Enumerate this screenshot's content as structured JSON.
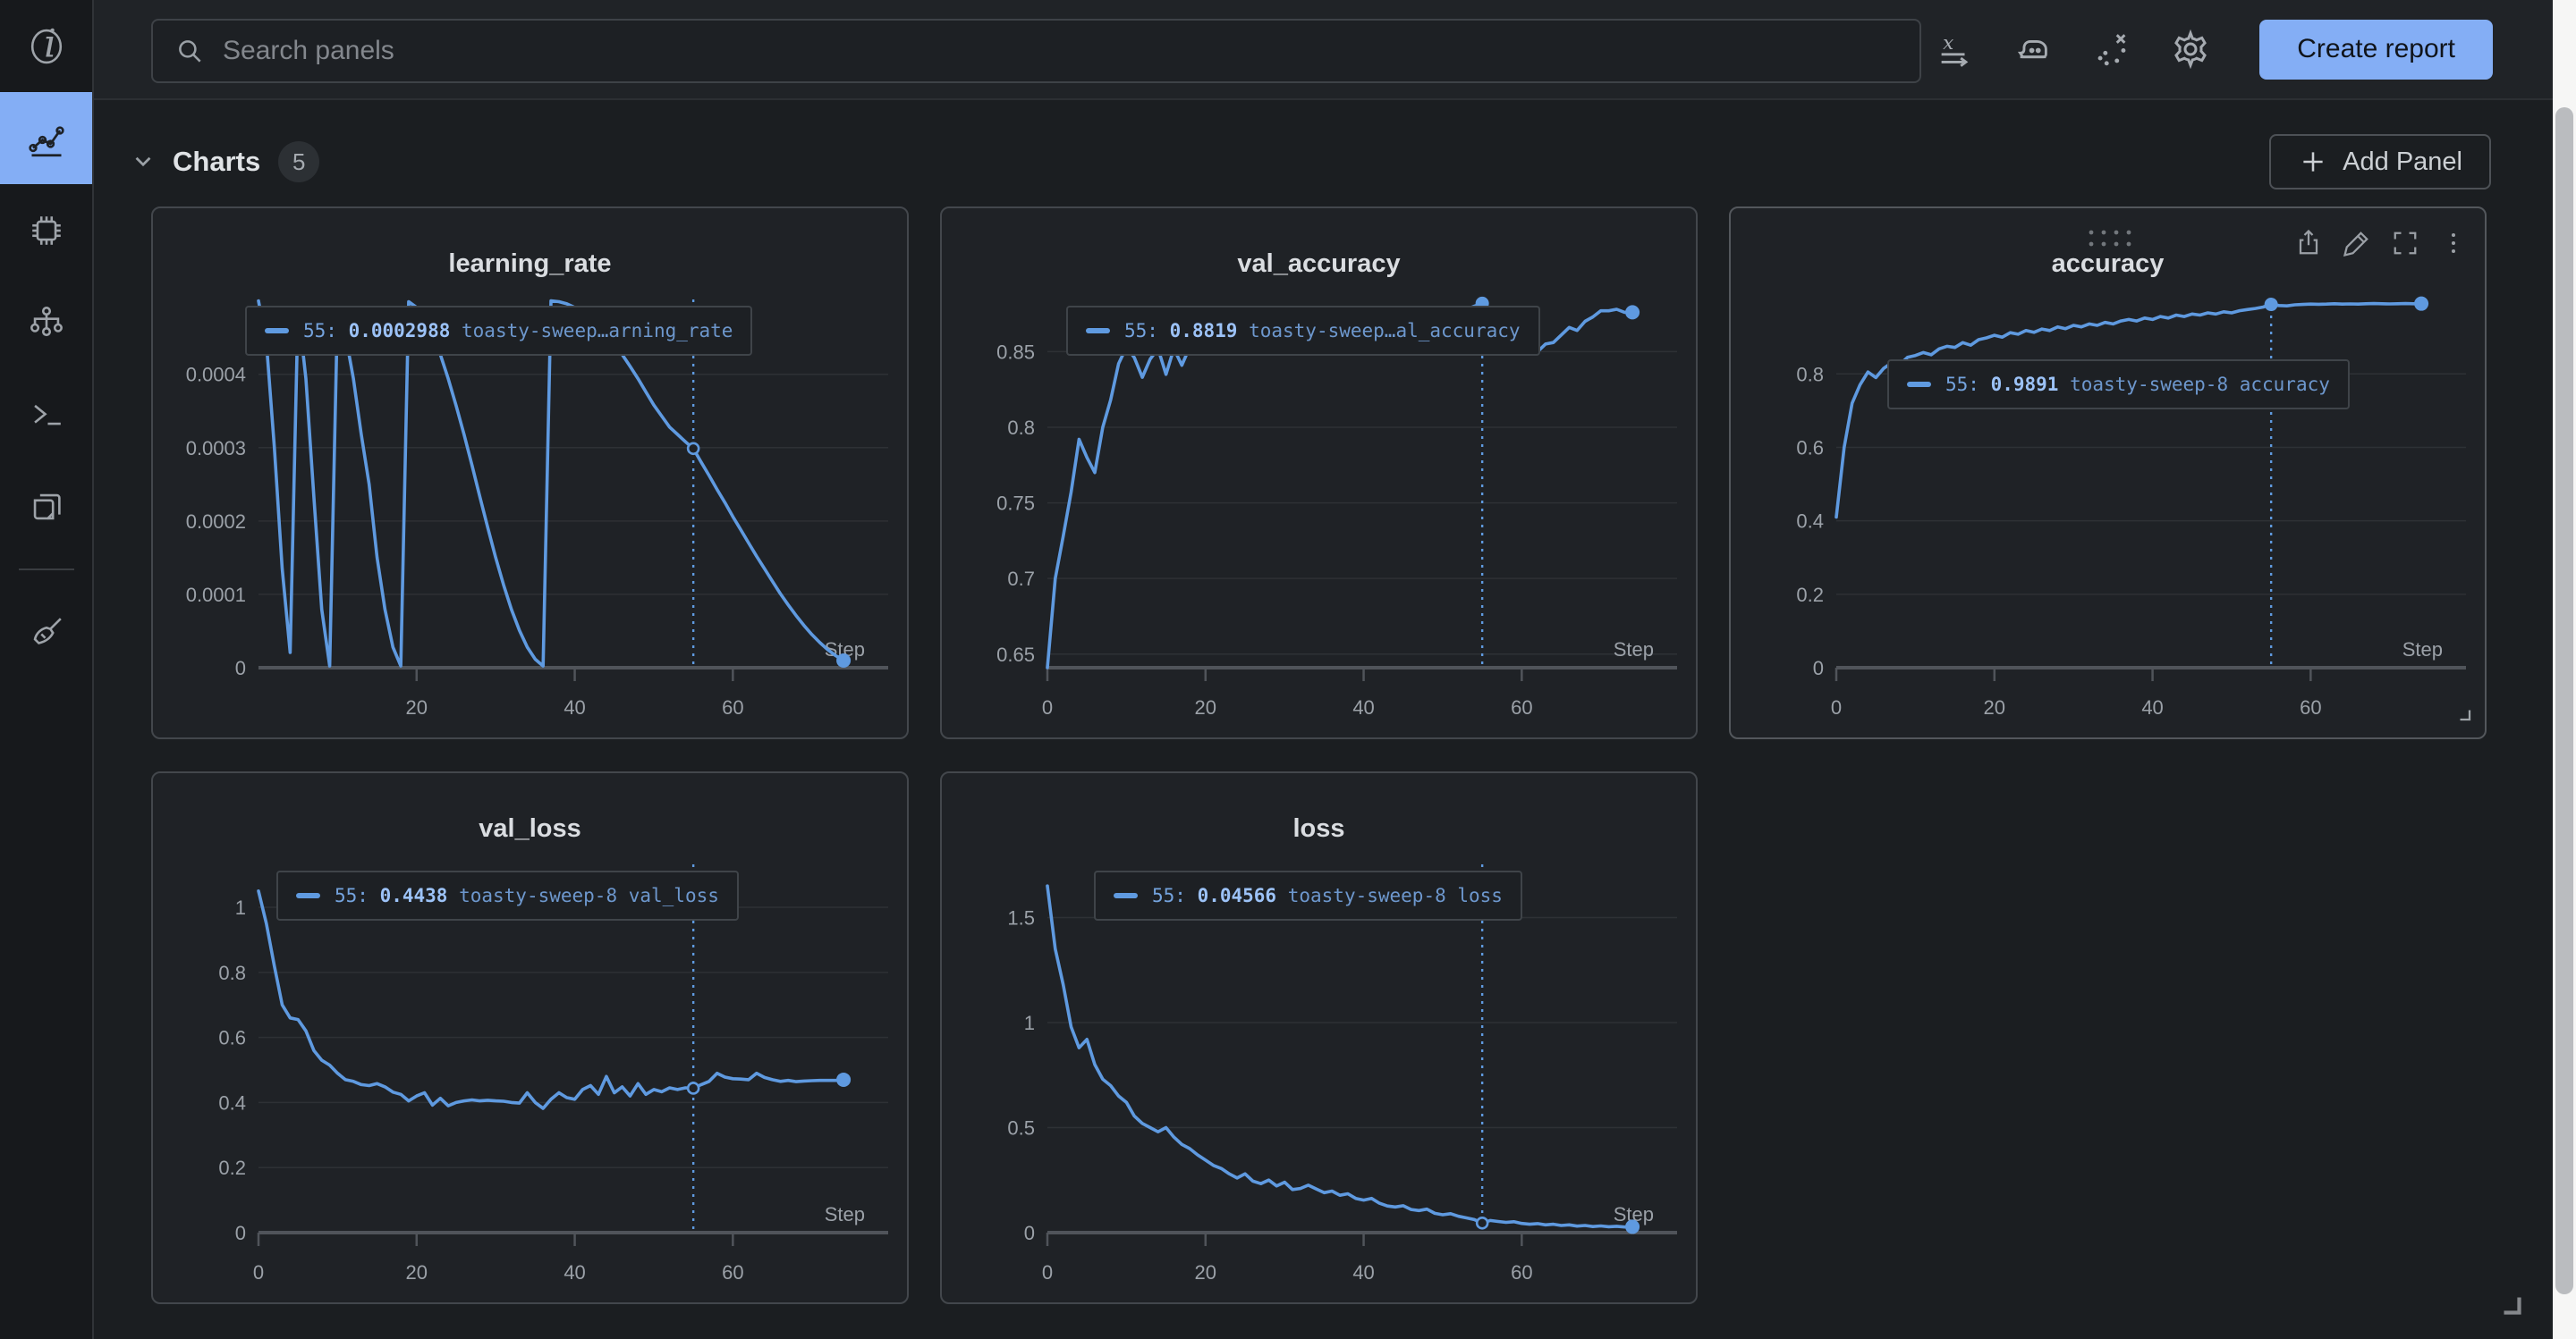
{
  "topbar": {
    "search_placeholder": "Search panels",
    "create_report_label": "Create report",
    "icons": [
      "x-axis-expression",
      "smoothing-iron",
      "outlier-scatter",
      "settings-gear"
    ]
  },
  "sidebar": {
    "items": [
      {
        "id": "overview",
        "icon": "info-icon",
        "active": false
      },
      {
        "id": "charts",
        "icon": "line-chart-icon",
        "active": true
      },
      {
        "id": "system",
        "icon": "chip-icon",
        "active": false
      },
      {
        "id": "model",
        "icon": "model-graph-icon",
        "active": false
      },
      {
        "id": "logs",
        "icon": "terminal-icon",
        "active": false
      },
      {
        "id": "files",
        "icon": "files-icon",
        "active": false
      },
      {
        "id": "sweep",
        "icon": "broom-icon",
        "active": false
      }
    ]
  },
  "section": {
    "title": "Charts",
    "count": "5",
    "add_panel_label": "Add Panel"
  },
  "run_name": "toasty-sweep-8",
  "colors": {
    "accent_blue": "#84aef5",
    "series_blue": "#5f9ae0",
    "panel_bg": "#1f2226",
    "page_bg": "#1b1e21"
  },
  "chart_data": [
    {
      "key": "learning_rate",
      "type": "line",
      "title": "learning_rate",
      "xlabel": "Step",
      "hovered": false,
      "xlim": [
        0,
        75.8
      ],
      "ylim": [
        0,
        0.000502
      ],
      "x_start": 0,
      "x_step": 1,
      "y_ticks": [
        {
          "v": 0.0004,
          "label": "0.0004"
        },
        {
          "v": 0.0003,
          "label": "0.0003"
        },
        {
          "v": 0.0002,
          "label": "0.0002"
        },
        {
          "v": 0.0001,
          "label": "0.0001"
        },
        {
          "v": 0,
          "label": "0"
        }
      ],
      "x_ticks": [
        {
          "v": 20,
          "label": "20"
        },
        {
          "v": 40,
          "label": "40"
        },
        {
          "v": 60,
          "label": "60"
        }
      ],
      "crosshair": {
        "x": 55,
        "value": 0.0002988,
        "marker": "open"
      },
      "tooltip": {
        "step": "55",
        "value": "0.0002988",
        "label": "toasty-sweep…arning_rate"
      },
      "y": [
        0.0005,
        0.000444,
        0.000301,
        0.000135,
        2.08e-05,
        0.000491,
        0.000394,
        0.000233,
        7.95e-05,
        2.3e-06,
        0.000491,
        0.000454,
        0.000394,
        0.000318,
        0.00025,
        0.00015,
        7.95e-05,
        2.8e-05,
        2.3e-06,
        0.000499,
        0.000491,
        0.000476,
        0.000454,
        0.000427,
        0.000394,
        0.000357,
        0.000318,
        0.000276,
        0.000233,
        0.000191,
        0.00015,
        0.000113,
        7.95e-05,
        5.09e-05,
        2.8e-05,
        1.16e-05,
        2.3e-06,
        0.0005,
        0.000499,
        0.000496,
        0.000491,
        0.000484,
        0.000476,
        0.000466,
        0.000454,
        0.000441,
        0.000427,
        0.000411,
        0.000394,
        0.000376,
        0.000358,
        0.000343,
        0.000328,
        0.000318,
        0.000308,
        0.0002988,
        0.00028,
        0.000262,
        0.000243,
        0.000225,
        0.000206,
        0.000188,
        0.00017,
        0.000152,
        0.000135,
        0.000118,
        0.000101,
        8.56e-05,
        7.1e-05,
        5.75e-05,
        4.52e-05,
        3.42e-05,
        2.46e-05,
        1.64e-05,
        9.8e-06
      ]
    },
    {
      "key": "val_accuracy",
      "type": "line",
      "title": "val_accuracy",
      "xlabel": "Step",
      "hovered": false,
      "xlim": [
        0,
        75.8
      ],
      "ylim": [
        0.641,
        0.8845
      ],
      "x_start": 0,
      "x_step": 1,
      "y_ticks": [
        {
          "v": 0.85,
          "label": "0.85"
        },
        {
          "v": 0.8,
          "label": "0.8"
        },
        {
          "v": 0.75,
          "label": "0.75"
        },
        {
          "v": 0.7,
          "label": "0.7"
        },
        {
          "v": 0.65,
          "label": "0.65"
        }
      ],
      "x_ticks": [
        {
          "v": 0,
          "label": "0"
        },
        {
          "v": 20,
          "label": "20"
        },
        {
          "v": 40,
          "label": "40"
        },
        {
          "v": 60,
          "label": "60"
        }
      ],
      "crosshair": {
        "x": 55,
        "value": 0.8819,
        "marker": "dot"
      },
      "tooltip": {
        "step": "55",
        "value": "0.8819",
        "label": "toasty-sweep…al_accuracy"
      },
      "y": [
        0.641,
        0.7,
        0.728,
        0.757,
        0.792,
        0.78,
        0.77,
        0.8,
        0.818,
        0.842,
        0.853,
        0.846,
        0.833,
        0.845,
        0.852,
        0.835,
        0.852,
        0.841,
        0.853,
        0.85,
        0.856,
        0.852,
        0.858,
        0.855,
        0.86,
        0.856,
        0.862,
        0.858,
        0.863,
        0.86,
        0.865,
        0.861,
        0.866,
        0.863,
        0.868,
        0.864,
        0.869,
        0.866,
        0.87,
        0.867,
        0.871,
        0.868,
        0.872,
        0.869,
        0.873,
        0.87,
        0.874,
        0.872,
        0.875,
        0.873,
        0.876,
        0.874,
        0.877,
        0.878,
        0.88,
        0.8819,
        0.872,
        0.865,
        0.857,
        0.855,
        0.863,
        0.862,
        0.85,
        0.855,
        0.856,
        0.861,
        0.866,
        0.864,
        0.87,
        0.873,
        0.877,
        0.877,
        0.878,
        0.876,
        0.876
      ]
    },
    {
      "key": "accuracy",
      "type": "line",
      "title": "accuracy",
      "xlabel": "Step",
      "hovered": true,
      "xlim": [
        0,
        75.8
      ],
      "ylim": [
        0,
        1.0026
      ],
      "x_start": 0,
      "x_step": 1,
      "y_ticks": [
        {
          "v": 0.8,
          "label": "0.8"
        },
        {
          "v": 0.6,
          "label": "0.6"
        },
        {
          "v": 0.4,
          "label": "0.4"
        },
        {
          "v": 0.2,
          "label": "0.2"
        },
        {
          "v": 0,
          "label": "0"
        }
      ],
      "x_ticks": [
        {
          "v": 0,
          "label": "0"
        },
        {
          "v": 20,
          "label": "20"
        },
        {
          "v": 40,
          "label": "40"
        },
        {
          "v": 60,
          "label": "60"
        }
      ],
      "crosshair": {
        "x": 55,
        "value": 0.9891,
        "marker": "dot"
      },
      "tooltip": {
        "step": "55",
        "value": "0.9891",
        "label": "toasty-sweep-8 accuracy"
      },
      "panel_action_icons": [
        "share-icon",
        "edit-pencil-icon",
        "fullscreen-icon",
        "kebab-menu-icon"
      ],
      "y": [
        0.41,
        0.6,
        0.72,
        0.77,
        0.805,
        0.79,
        0.815,
        0.83,
        0.825,
        0.845,
        0.85,
        0.858,
        0.852,
        0.868,
        0.875,
        0.872,
        0.885,
        0.878,
        0.893,
        0.898,
        0.905,
        0.9,
        0.912,
        0.908,
        0.918,
        0.913,
        0.922,
        0.918,
        0.928,
        0.923,
        0.932,
        0.928,
        0.936,
        0.932,
        0.94,
        0.936,
        0.944,
        0.948,
        0.944,
        0.952,
        0.948,
        0.956,
        0.952,
        0.96,
        0.956,
        0.963,
        0.96,
        0.966,
        0.963,
        0.969,
        0.966,
        0.972,
        0.975,
        0.978,
        0.982,
        0.9891,
        0.986,
        0.985,
        0.988,
        0.989,
        0.99,
        0.9895,
        0.99,
        0.991,
        0.99,
        0.9905,
        0.99,
        0.991,
        0.9915,
        0.991,
        0.9905,
        0.991,
        0.9915,
        0.991,
        0.9912
      ]
    },
    {
      "key": "val_loss",
      "type": "line",
      "title": "val_loss",
      "xlabel": "Step",
      "hovered": false,
      "xlim": [
        0,
        75.8
      ],
      "ylim": [
        0,
        1.132
      ],
      "x_start": 0,
      "x_step": 1,
      "y_ticks": [
        {
          "v": 1,
          "label": "1"
        },
        {
          "v": 0.8,
          "label": "0.8"
        },
        {
          "v": 0.6,
          "label": "0.6"
        },
        {
          "v": 0.4,
          "label": "0.4"
        },
        {
          "v": 0.2,
          "label": "0.2"
        },
        {
          "v": 0,
          "label": "0"
        }
      ],
      "x_ticks": [
        {
          "v": 0,
          "label": "0"
        },
        {
          "v": 20,
          "label": "20"
        },
        {
          "v": 40,
          "label": "40"
        },
        {
          "v": 60,
          "label": "60"
        }
      ],
      "crosshair": {
        "x": 55,
        "value": 0.4438,
        "marker": "open"
      },
      "tooltip": {
        "step": "55",
        "value": "0.4438",
        "label": "toasty-sweep-8 val_loss"
      },
      "y": [
        1.05,
        0.95,
        0.82,
        0.7,
        0.66,
        0.655,
        0.62,
        0.56,
        0.53,
        0.515,
        0.49,
        0.47,
        0.465,
        0.455,
        0.452,
        0.458,
        0.448,
        0.432,
        0.425,
        0.405,
        0.42,
        0.43,
        0.392,
        0.413,
        0.39,
        0.4,
        0.405,
        0.408,
        0.405,
        0.407,
        0.405,
        0.404,
        0.4,
        0.398,
        0.43,
        0.4,
        0.382,
        0.41,
        0.43,
        0.415,
        0.41,
        0.44,
        0.452,
        0.425,
        0.48,
        0.43,
        0.448,
        0.42,
        0.458,
        0.425,
        0.44,
        0.433,
        0.445,
        0.44,
        0.445,
        0.4438,
        0.455,
        0.465,
        0.49,
        0.478,
        0.473,
        0.472,
        0.47,
        0.49,
        0.477,
        0.47,
        0.465,
        0.468,
        0.464,
        0.466,
        0.467,
        0.468,
        0.468,
        0.468,
        0.47
      ]
    },
    {
      "key": "loss",
      "type": "line",
      "title": "loss",
      "xlabel": "Step",
      "hovered": false,
      "xlim": [
        0,
        75.8
      ],
      "ylim": [
        0,
        1.753
      ],
      "x_start": 0,
      "x_step": 1,
      "y_ticks": [
        {
          "v": 1.5,
          "label": "1.5"
        },
        {
          "v": 1,
          "label": "1"
        },
        {
          "v": 0.5,
          "label": "0.5"
        },
        {
          "v": 0,
          "label": "0"
        }
      ],
      "x_ticks": [
        {
          "v": 0,
          "label": "0"
        },
        {
          "v": 20,
          "label": "20"
        },
        {
          "v": 40,
          "label": "40"
        },
        {
          "v": 60,
          "label": "60"
        }
      ],
      "crosshair": {
        "x": 55,
        "value": 0.04566,
        "marker": "open"
      },
      "tooltip": {
        "step": "55",
        "value": "0.04566",
        "label": "toasty-sweep-8 loss"
      },
      "y": [
        1.65,
        1.35,
        1.18,
        0.98,
        0.88,
        0.92,
        0.8,
        0.73,
        0.7,
        0.65,
        0.62,
        0.555,
        0.52,
        0.5,
        0.48,
        0.5,
        0.455,
        0.42,
        0.4,
        0.37,
        0.345,
        0.32,
        0.305,
        0.28,
        0.26,
        0.28,
        0.245,
        0.233,
        0.25,
        0.222,
        0.24,
        0.205,
        0.21,
        0.226,
        0.208,
        0.19,
        0.198,
        0.178,
        0.185,
        0.163,
        0.155,
        0.163,
        0.14,
        0.127,
        0.122,
        0.128,
        0.11,
        0.105,
        0.112,
        0.092,
        0.085,
        0.09,
        0.078,
        0.07,
        0.062,
        0.04566,
        0.058,
        0.053,
        0.049,
        0.052,
        0.044,
        0.04,
        0.043,
        0.037,
        0.04,
        0.034,
        0.037,
        0.031,
        0.034,
        0.029,
        0.032,
        0.028,
        0.03,
        0.027,
        0.028
      ]
    }
  ]
}
